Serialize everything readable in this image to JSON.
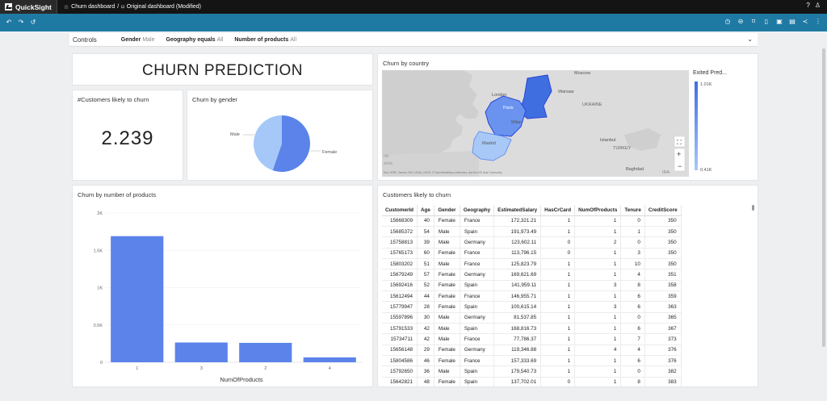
{
  "topbar": {
    "app_name": "QuickSight",
    "breadcrumb_1": "Churn dashboard",
    "separator": "/",
    "breadcrumb_2": "Original dashboard (Modified)"
  },
  "controls": {
    "label": "Controls",
    "items": [
      {
        "name": "Gender",
        "value": "Male"
      },
      {
        "name": "Geography equals",
        "value": "All"
      },
      {
        "name": "Number of products",
        "value": "All"
      }
    ]
  },
  "title_visual": {
    "text": "CHURN PREDICTION"
  },
  "kpi": {
    "title": "#Customers likely to churn",
    "value": "2.239"
  },
  "gender_pie": {
    "title": "Churn by gender",
    "label_male": "Male",
    "label_female": "Female"
  },
  "map": {
    "title": "Churn by country",
    "legend_title": "Exited Pred...",
    "legend_max": "1.01K",
    "legend_min": "0.41K",
    "attribution": "Esri, HERE, Garmin, FAO, NOAA, USGS, © OpenStreetMap contributors, and the GIS User Community",
    "places": {
      "moscow": "Moscow",
      "warsaw": "Warsaw",
      "london": "London",
      "paris": "Paris",
      "ukraine": "UKRAINE",
      "milan": "Milan",
      "madrid": "Madrid",
      "istanbul": "Istanbul",
      "turkey": "TURKEY",
      "baghdad": "Baghdad",
      "north": "rth",
      "atlantic": "antic",
      "ira": "IRA"
    },
    "colors": {
      "germany": "#3f6ee0",
      "france": "#6a93ef",
      "spain": "#a8c9f7"
    }
  },
  "bar_chart": {
    "title": "Churn by number of products"
  },
  "chart_data": {
    "type": "bar",
    "categories": [
      "1",
      "3",
      "2",
      "4"
    ],
    "values": [
      1690,
      265,
      260,
      65
    ],
    "xlabel": "NumOfProducts",
    "ylabel": "",
    "ylim": [
      0,
      2000
    ],
    "yticks": [
      "0",
      "0.5K",
      "1K",
      "1.5K",
      "2K"
    ],
    "ytick_values": [
      0,
      500,
      1000,
      1500,
      2000
    ],
    "color": "#5b83ea"
  },
  "table": {
    "title": "Customers likely to churn",
    "columns": [
      "CustomerId",
      "Age",
      "Gender",
      "Geography",
      "EstimatedSalary",
      "HasCrCard",
      "NumOfProducts",
      "Tenure",
      "CreditScore"
    ],
    "rows": [
      [
        "15668309",
        "40",
        "Female",
        "France",
        "172,321.21",
        "1",
        "1",
        "0",
        "350"
      ],
      [
        "15685372",
        "54",
        "Male",
        "Spain",
        "191,973.49",
        "1",
        "1",
        "1",
        "350"
      ],
      [
        "15758813",
        "39",
        "Male",
        "Germany",
        "123,602.11",
        "0",
        "2",
        "0",
        "350"
      ],
      [
        "15765173",
        "60",
        "Female",
        "France",
        "113,796.15",
        "0",
        "1",
        "3",
        "350"
      ],
      [
        "15803202",
        "51",
        "Male",
        "France",
        "125,823.79",
        "1",
        "1",
        "10",
        "350"
      ],
      [
        "15679249",
        "57",
        "Female",
        "Germany",
        "169,621.69",
        "1",
        "1",
        "4",
        "351"
      ],
      [
        "15692416",
        "52",
        "Female",
        "Spain",
        "141,959.11",
        "1",
        "3",
        "8",
        "358"
      ],
      [
        "15612494",
        "44",
        "Female",
        "France",
        "146,955.71",
        "1",
        "1",
        "6",
        "359"
      ],
      [
        "15779947",
        "28",
        "Female",
        "Spain",
        "100,615.14",
        "1",
        "3",
        "6",
        "363"
      ],
      [
        "15597896",
        "30",
        "Male",
        "Germany",
        "81,537.85",
        "1",
        "1",
        "0",
        "365"
      ],
      [
        "15791533",
        "42",
        "Male",
        "Spain",
        "168,816.73",
        "1",
        "1",
        "6",
        "367"
      ],
      [
        "15734711",
        "42",
        "Male",
        "France",
        "77,786.37",
        "1",
        "1",
        "7",
        "373"
      ],
      [
        "15656148",
        "29",
        "Female",
        "Germany",
        "119,346.88",
        "1",
        "4",
        "4",
        "376"
      ],
      [
        "15804586",
        "46",
        "Female",
        "France",
        "157,333.69",
        "1",
        "1",
        "6",
        "376"
      ],
      [
        "15792650",
        "36",
        "Male",
        "Spain",
        "179,540.73",
        "1",
        "1",
        "0",
        "382"
      ],
      [
        "15642821",
        "48",
        "Female",
        "Spain",
        "137,702.01",
        "0",
        "1",
        "8",
        "383"
      ]
    ]
  }
}
